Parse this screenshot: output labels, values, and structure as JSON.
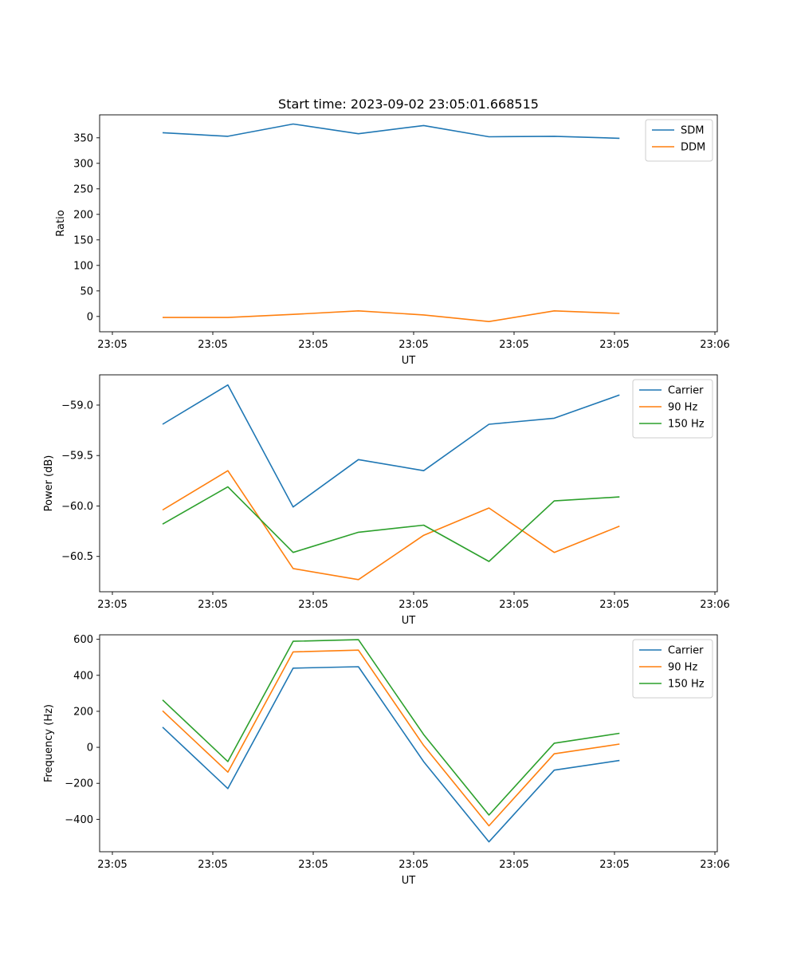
{
  "title": "Start time: 2023-09-02 23:05:01.668515",
  "chart_data": [
    {
      "type": "line",
      "xlabel": "UT",
      "ylabel": "Ratio",
      "x_ticks": [
        "23:05",
        "23:05",
        "23:05",
        "23:05",
        "23:05",
        "23:05",
        "23:06"
      ],
      "x_range": [
        0,
        6
      ],
      "x": [
        0.5,
        1.15,
        1.8,
        2.45,
        3.1,
        3.75,
        4.4,
        5.05
      ],
      "ylim": [
        -30,
        395
      ],
      "y_ticks": [
        0,
        50,
        100,
        150,
        200,
        250,
        300,
        350
      ],
      "y_tick_labels": [
        "0",
        "50",
        "100",
        "150",
        "200",
        "250",
        "300",
        "350"
      ],
      "legend_position": "upper-right",
      "series": [
        {
          "name": "SDM",
          "color": "#1f77b4",
          "values": [
            360,
            353,
            377,
            358,
            374,
            352,
            353,
            349
          ]
        },
        {
          "name": "DDM",
          "color": "#ff7f0e",
          "values": [
            -2,
            -2,
            4,
            11,
            3,
            -10,
            11,
            6
          ]
        }
      ]
    },
    {
      "type": "line",
      "xlabel": "UT",
      "ylabel": "Power (dB)",
      "x_ticks": [
        "23:05",
        "23:05",
        "23:05",
        "23:05",
        "23:05",
        "23:05",
        "23:06"
      ],
      "x_range": [
        0,
        6
      ],
      "x": [
        0.5,
        1.15,
        1.8,
        2.45,
        3.1,
        3.75,
        4.4,
        5.05
      ],
      "ylim": [
        -60.85,
        -58.7
      ],
      "y_ticks": [
        -59.0,
        -59.5,
        -60.0,
        -60.5
      ],
      "y_tick_labels": [
        "−59.0",
        "−59.5",
        "−60.0",
        "−60.5"
      ],
      "legend_position": "upper-right",
      "series": [
        {
          "name": "Carrier",
          "color": "#1f77b4",
          "values": [
            -59.19,
            -58.8,
            -60.01,
            -59.54,
            -59.65,
            -59.19,
            -59.13,
            -58.9
          ]
        },
        {
          "name": "90 Hz",
          "color": "#ff7f0e",
          "values": [
            -60.04,
            -59.65,
            -60.62,
            -60.73,
            -60.29,
            -60.02,
            -60.46,
            -60.2
          ]
        },
        {
          "name": "150 Hz",
          "color": "#2ca02c",
          "values": [
            -60.18,
            -59.81,
            -60.46,
            -60.26,
            -60.19,
            -60.55,
            -59.95,
            -59.91
          ]
        }
      ]
    },
    {
      "type": "line",
      "xlabel": "UT",
      "ylabel": "Frequency (Hz)",
      "x_ticks": [
        "23:05",
        "23:05",
        "23:05",
        "23:05",
        "23:05",
        "23:05",
        "23:06"
      ],
      "x_range": [
        0,
        6
      ],
      "x": [
        0.5,
        1.15,
        1.8,
        2.45,
        3.1,
        3.75,
        4.4,
        5.05
      ],
      "ylim": [
        -580,
        625
      ],
      "y_ticks": [
        600,
        400,
        200,
        0,
        -200,
        -400
      ],
      "y_tick_labels": [
        "600",
        "400",
        "200",
        "0",
        "−200",
        "−400"
      ],
      "legend_position": "upper-right",
      "series": [
        {
          "name": "Carrier",
          "color": "#1f77b4",
          "values": [
            112,
            -229,
            440,
            448,
            -80,
            -525,
            -127,
            -73
          ]
        },
        {
          "name": "90 Hz",
          "color": "#ff7f0e",
          "values": [
            203,
            -138,
            530,
            540,
            10,
            -436,
            -36,
            18
          ]
        },
        {
          "name": "150 Hz",
          "color": "#2ca02c",
          "values": [
            263,
            -79,
            589,
            598,
            71,
            -376,
            23,
            78
          ]
        }
      ]
    }
  ]
}
